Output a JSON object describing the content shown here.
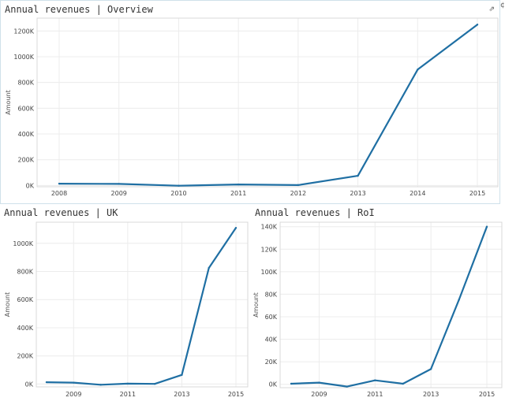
{
  "edge_glyph": "¢",
  "colors": {
    "line": "#1f6fa3",
    "grid": "#ececec",
    "frame": "#d9d9d9"
  },
  "popout_icon": "external-link-icon",
  "chart_data": [
    {
      "id": "overview",
      "type": "line",
      "title": "Annual revenues | Overview",
      "ylabel": "Amount",
      "xlabel": "",
      "x": [
        "2008",
        "2009",
        "2010",
        "2011",
        "2012",
        "2013",
        "2014",
        "2015"
      ],
      "xticks": [
        "2008",
        "2009",
        "2010",
        "2011",
        "2012",
        "2013",
        "2014",
        "2015"
      ],
      "values": [
        14000,
        12000,
        -2000,
        8000,
        3000,
        75000,
        900000,
        1250000
      ],
      "yticks": [
        0,
        200000,
        400000,
        600000,
        800000,
        1000000,
        1200000
      ],
      "ytick_labels": [
        "0K",
        "200K",
        "400K",
        "600K",
        "800K",
        "1000K",
        "1200K"
      ],
      "ylim": [
        -10000,
        1300000
      ],
      "grid": true
    },
    {
      "id": "uk",
      "type": "line",
      "title": "Annual revenues | UK",
      "ylabel": "Amount",
      "xlabel": "",
      "x": [
        "2008",
        "2009",
        "2010",
        "2011",
        "2012",
        "2013",
        "2014",
        "2015"
      ],
      "xticks": [
        "2009",
        "2011",
        "2013",
        "2015"
      ],
      "values": [
        13000,
        10000,
        -5000,
        3000,
        1000,
        65000,
        825000,
        1110000
      ],
      "yticks": [
        0,
        200000,
        400000,
        600000,
        800000,
        1000000
      ],
      "ytick_labels": [
        "0K",
        "200K",
        "400K",
        "600K",
        "800K",
        "1000K"
      ],
      "ylim": [
        -20000,
        1150000
      ],
      "grid": true
    },
    {
      "id": "roi",
      "type": "line",
      "title": "Annual revenues | RoI",
      "ylabel": "Amount",
      "xlabel": "",
      "x": [
        "2008",
        "2009",
        "2010",
        "2011",
        "2012",
        "2013",
        "2014",
        "2015"
      ],
      "xticks": [
        "2009",
        "2011",
        "2013",
        "2015"
      ],
      "values": [
        500,
        1500,
        -2000,
        3500,
        500,
        13500,
        75000,
        140000
      ],
      "yticks": [
        0,
        20000,
        40000,
        60000,
        80000,
        100000,
        120000,
        140000
      ],
      "ytick_labels": [
        "0K",
        "20K",
        "40K",
        "60K",
        "80K",
        "100K",
        "120K",
        "140K"
      ],
      "ylim": [
        -3000,
        144000
      ],
      "grid": true
    }
  ]
}
